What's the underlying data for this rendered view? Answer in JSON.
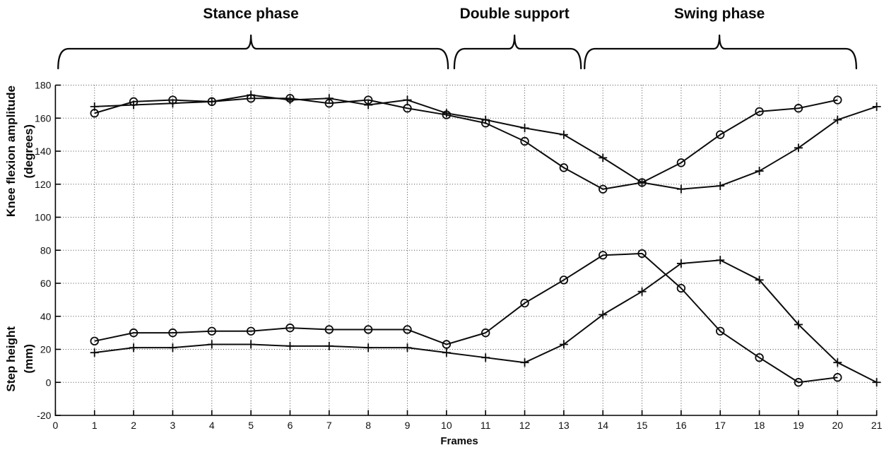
{
  "chart_data": {
    "type": "line",
    "title": "",
    "xlabel": "Frames",
    "ylabel_top": {
      "line1": "Knee flexion amplitude",
      "line2": "(degrees)"
    },
    "ylabel_bottom": {
      "line1": "Step height",
      "line2": "(mm)"
    },
    "xlim": [
      0,
      21
    ],
    "ylim": [
      -20,
      180
    ],
    "x_ticks": [
      0,
      1,
      2,
      3,
      4,
      5,
      6,
      7,
      8,
      9,
      10,
      11,
      12,
      13,
      14,
      15,
      16,
      17,
      18,
      19,
      20,
      21
    ],
    "y_ticks": [
      180,
      160,
      140,
      120,
      100,
      80,
      60,
      40,
      20,
      0,
      -20
    ],
    "grid": "dotted",
    "legend": "none",
    "line_color": "#0c0c0c",
    "annotations": [
      {
        "label": "Stance phase",
        "x_start": 0.07,
        "x_end": 10.04,
        "tick_x": 5.0
      },
      {
        "label": "Double support",
        "x_start": 10.2,
        "x_end": 13.44,
        "tick_x": 11.74
      },
      {
        "label": "Swing phase",
        "x_start": 13.53,
        "x_end": 20.48,
        "tick_x": 16.98
      }
    ],
    "series": [
      {
        "name": "knee-flexion-circle",
        "marker": "circle",
        "axis_group": "knee flexion amplitude (degrees)",
        "x": [
          1,
          2,
          3,
          4,
          5,
          6,
          7,
          8,
          9,
          10,
          11,
          12,
          13,
          14,
          15,
          16,
          17,
          18,
          19,
          20
        ],
        "values": [
          163,
          170,
          171,
          170,
          172,
          172,
          169,
          171,
          166,
          162,
          157,
          146,
          130,
          117,
          121,
          133,
          150,
          164,
          166,
          171
        ]
      },
      {
        "name": "knee-flexion-plus",
        "marker": "plus",
        "axis_group": "knee flexion amplitude (degrees)",
        "x": [
          1,
          2,
          3,
          4,
          5,
          6,
          7,
          8,
          9,
          10,
          11,
          12,
          13,
          14,
          15,
          16,
          17,
          18,
          19,
          20,
          21
        ],
        "values": [
          167,
          168,
          169,
          170,
          174,
          171,
          172,
          168,
          171,
          163,
          159,
          154,
          150,
          136,
          121,
          117,
          119,
          128,
          142,
          159,
          167
        ]
      },
      {
        "name": "step-height-circle",
        "marker": "circle",
        "axis_group": "step height (mm)",
        "x": [
          1,
          2,
          3,
          4,
          5,
          6,
          7,
          8,
          9,
          10,
          11,
          12,
          13,
          14,
          15,
          16,
          17,
          18,
          19,
          20
        ],
        "values": [
          25,
          30,
          30,
          31,
          31,
          33,
          32,
          32,
          32,
          23,
          30,
          48,
          62,
          77,
          78,
          57,
          31,
          15,
          0,
          3
        ]
      },
      {
        "name": "step-height-plus",
        "marker": "plus",
        "axis_group": "step height (mm)",
        "x": [
          1,
          2,
          3,
          4,
          5,
          6,
          7,
          8,
          9,
          10,
          11,
          12,
          13,
          14,
          15,
          16,
          17,
          18,
          19,
          20,
          21
        ],
        "values": [
          18,
          21,
          21,
          23,
          23,
          22,
          22,
          21,
          21,
          18,
          15,
          12,
          23,
          41,
          55,
          72,
          74,
          62,
          35,
          12,
          0
        ]
      }
    ]
  }
}
